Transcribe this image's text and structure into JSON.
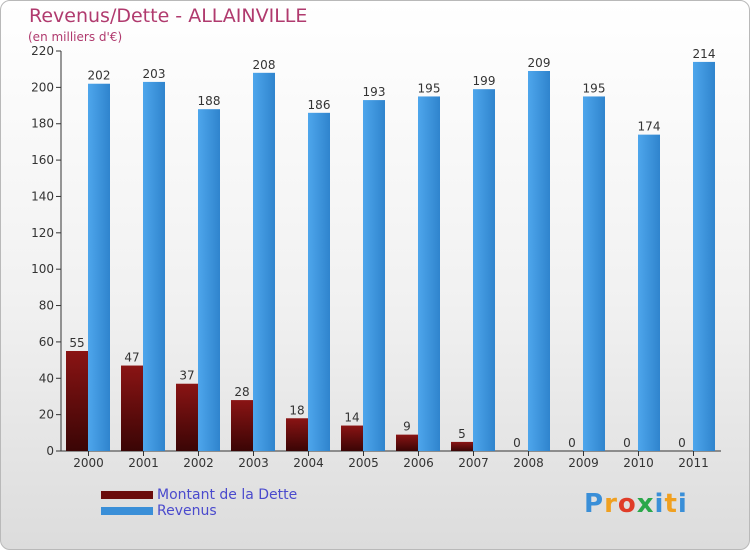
{
  "title": "Revenus/Dette - ALLAINVILLE",
  "subtitle": "(en milliers d'€)",
  "colors": {
    "debt": "#6b0d0d",
    "revenue": "#3a8fd8",
    "title": "#b03a6e",
    "legend_text": "#4a4acd"
  },
  "chart_data": {
    "type": "bar",
    "categories": [
      "2000",
      "2001",
      "2002",
      "2003",
      "2004",
      "2005",
      "2006",
      "2007",
      "2008",
      "2009",
      "2010",
      "2011"
    ],
    "series": [
      {
        "name": "Montant de la Dette",
        "values": [
          55,
          47,
          37,
          28,
          18,
          14,
          9,
          5,
          0,
          0,
          0,
          0
        ]
      },
      {
        "name": "Revenus",
        "values": [
          202,
          203,
          188,
          208,
          186,
          193,
          195,
          199,
          209,
          195,
          174,
          214
        ]
      }
    ],
    "yticks": [
      0,
      20,
      40,
      60,
      80,
      100,
      120,
      140,
      160,
      180,
      200,
      220
    ],
    "ylim": [
      0,
      220
    ],
    "grid": false,
    "legend_position": "bottom-left"
  },
  "legend": {
    "items": [
      "Montant de la Dette",
      "Revenus"
    ]
  },
  "logo": {
    "text": "Proxiti",
    "letter_colors": [
      "#3a8fd8",
      "#f0a020",
      "#e03c28",
      "#2aa84a",
      "#3a8fd8",
      "#f0a020",
      "#3a8fd8"
    ]
  }
}
